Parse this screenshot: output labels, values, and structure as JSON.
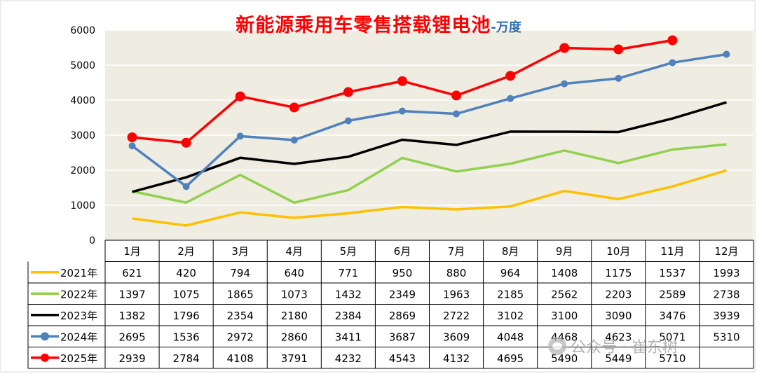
{
  "title": "新能源乘用车零售搭载锂电池",
  "unit": "-万度",
  "watermark": "公众号 · 崔东树",
  "colors": {
    "plot_bg": "#efece2",
    "grid": "#ffffff",
    "2021": "#ffc000",
    "2022": "#92d050",
    "2023": "#000000",
    "2024": "#4f81bd",
    "2025": "#ff0000"
  },
  "chart_data": {
    "type": "line",
    "title": "新能源乘用车零售搭载锂电池-万度",
    "categories": [
      "1月",
      "2月",
      "3月",
      "4月",
      "5月",
      "6月",
      "7月",
      "8月",
      "9月",
      "10月",
      "11月",
      "12月"
    ],
    "ylim": [
      0,
      6000
    ],
    "yticks": [
      0,
      1000,
      2000,
      3000,
      4000,
      5000,
      6000
    ],
    "grid": true,
    "legend": "data-table-left",
    "series": [
      {
        "name": "2021年",
        "color": "#ffc000",
        "markers": false,
        "values": [
          621,
          420,
          794,
          640,
          771,
          950,
          880,
          964,
          1408,
          1175,
          1537,
          1993
        ]
      },
      {
        "name": "2022年",
        "color": "#92d050",
        "markers": false,
        "values": [
          1397,
          1075,
          1865,
          1073,
          1432,
          2349,
          1963,
          2185,
          2562,
          2203,
          2589,
          2738
        ]
      },
      {
        "name": "2023年",
        "color": "#000000",
        "markers": false,
        "values": [
          1382,
          1796,
          2354,
          2180,
          2384,
          2869,
          2722,
          3102,
          3100,
          3090,
          3476,
          3939
        ]
      },
      {
        "name": "2024年",
        "color": "#4f81bd",
        "markers": true,
        "values": [
          2695,
          1536,
          2972,
          2860,
          3411,
          3687,
          3609,
          4048,
          4468,
          4623,
          5071,
          5310
        ]
      },
      {
        "name": "2025年",
        "color": "#ff0000",
        "markers": true,
        "values": [
          2939,
          2784,
          4108,
          3791,
          4232,
          4543,
          4132,
          4695,
          5490,
          5449,
          5710,
          null
        ]
      }
    ]
  }
}
